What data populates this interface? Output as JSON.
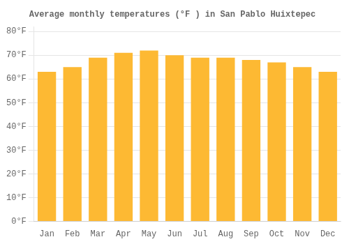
{
  "chart_data": {
    "type": "bar",
    "title": "Average monthly temperatures (°F ) in San Pablo Huixtepec",
    "categories": [
      "Jan",
      "Feb",
      "Mar",
      "Apr",
      "May",
      "Jun",
      "Jul",
      "Aug",
      "Sep",
      "Oct",
      "Nov",
      "Dec"
    ],
    "values": [
      63,
      65,
      69,
      71,
      72,
      70,
      69,
      69,
      68,
      67,
      65,
      63
    ],
    "color": "#FDB933",
    "ylim": [
      0,
      82
    ],
    "yticks": [
      {
        "value": 0,
        "label": "0°F"
      },
      {
        "value": 10,
        "label": "10°F"
      },
      {
        "value": 20,
        "label": "20°F"
      },
      {
        "value": 30,
        "label": "30°F"
      },
      {
        "value": 40,
        "label": "40°F"
      },
      {
        "value": 50,
        "label": "50°F"
      },
      {
        "value": 60,
        "label": "60°F"
      },
      {
        "value": 70,
        "label": "70°F"
      },
      {
        "value": 80,
        "label": "80°F"
      }
    ],
    "grid": true
  }
}
